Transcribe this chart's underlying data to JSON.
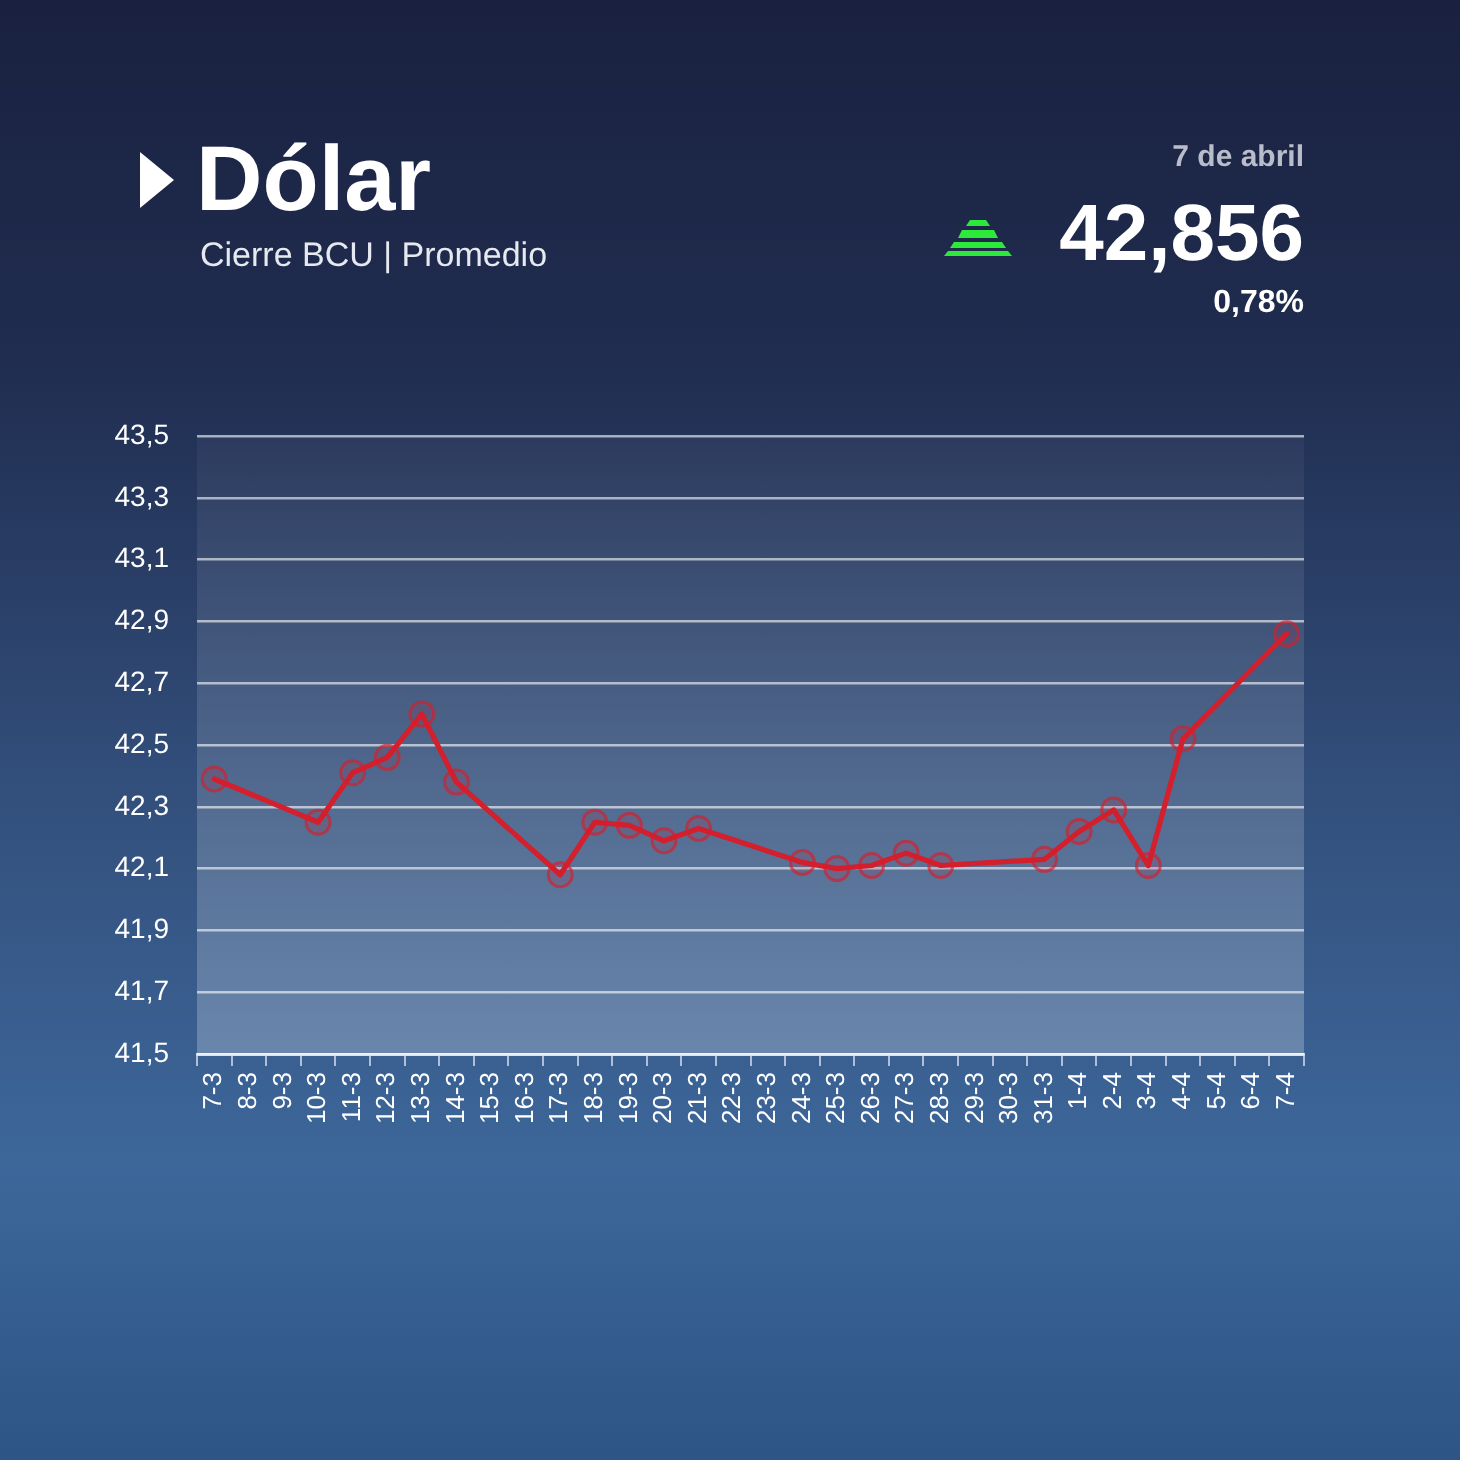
{
  "chart_data": {
    "type": "line",
    "title": "Dólar",
    "subtitle": "Cierre BCU | Promedio",
    "annotations": [
      "7 de abril",
      "42,856",
      "0,78%"
    ],
    "categories": [
      "7-3",
      "8-3",
      "9-3",
      "10-3",
      "11-3",
      "12-3",
      "13-3",
      "14-3",
      "15-3",
      "16-3",
      "17-3",
      "18-3",
      "19-3",
      "20-3",
      "21-3",
      "22-3",
      "23-3",
      "24-3",
      "25-3",
      "26-3",
      "27-3",
      "28-3",
      "29-3",
      "30-3",
      "31-3",
      "1-4",
      "2-4",
      "3-4",
      "4-4",
      "5-4",
      "6-4",
      "7-4"
    ],
    "values": [
      42.39,
      null,
      null,
      42.25,
      42.41,
      42.46,
      42.6,
      42.38,
      null,
      null,
      42.08,
      42.25,
      42.24,
      42.19,
      42.23,
      null,
      null,
      42.12,
      42.1,
      42.11,
      42.15,
      42.11,
      null,
      null,
      42.13,
      42.22,
      42.29,
      42.11,
      42.52,
      null,
      null,
      42.86
    ],
    "color": "#d41f2d",
    "ylim": [
      41.5,
      43.5
    ],
    "yticks": [
      {
        "value": 41.5,
        "label": "41,5"
      },
      {
        "value": 41.7,
        "label": "41,7"
      },
      {
        "value": 41.9,
        "label": "41,9"
      },
      {
        "value": 42.1,
        "label": "42,1"
      },
      {
        "value": 42.3,
        "label": "42,3"
      },
      {
        "value": 42.5,
        "label": "42,5"
      },
      {
        "value": 42.7,
        "label": "42,7"
      },
      {
        "value": 42.9,
        "label": "42,9"
      },
      {
        "value": 43.1,
        "label": "43,1"
      },
      {
        "value": 43.3,
        "label": "43,3"
      },
      {
        "value": 43.5,
        "label": "43,5"
      }
    ],
    "grid": "y",
    "marker": "circle",
    "line_style": "solid"
  }
}
